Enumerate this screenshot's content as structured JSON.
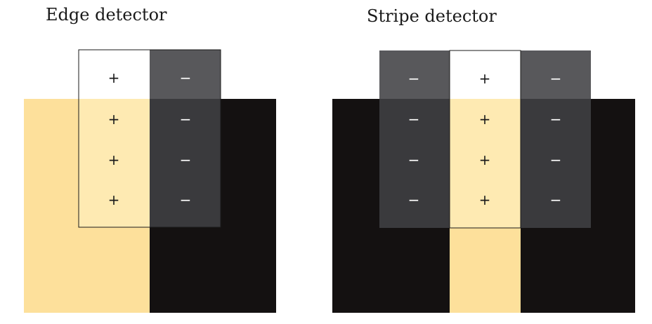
{
  "edge_detector": {
    "title": "Edge detector",
    "symbols": {
      "left_column": [
        "+",
        "+",
        "+",
        "+"
      ],
      "right_column": [
        "−",
        "−",
        "−",
        "−"
      ]
    }
  },
  "stripe_detector": {
    "title": "Stripe detector",
    "symbols": {
      "left_column": [
        "−",
        "−",
        "−",
        "−"
      ],
      "center_column": [
        "+",
        "+",
        "+",
        "+"
      ],
      "right_column": [
        "−",
        "−",
        "−",
        "−"
      ]
    }
  },
  "colors": {
    "light_region": "#fde09b",
    "dark_region": "#141111",
    "positive_weight_over_background": "#ffffff",
    "positive_weight_over_light": "#feeab2",
    "negative_weight_over_background": "#58585b",
    "negative_weight_over_dark": "#3a3a3d",
    "symbol_dark": "#1a1a1a",
    "symbol_light": "#ffffff"
  }
}
